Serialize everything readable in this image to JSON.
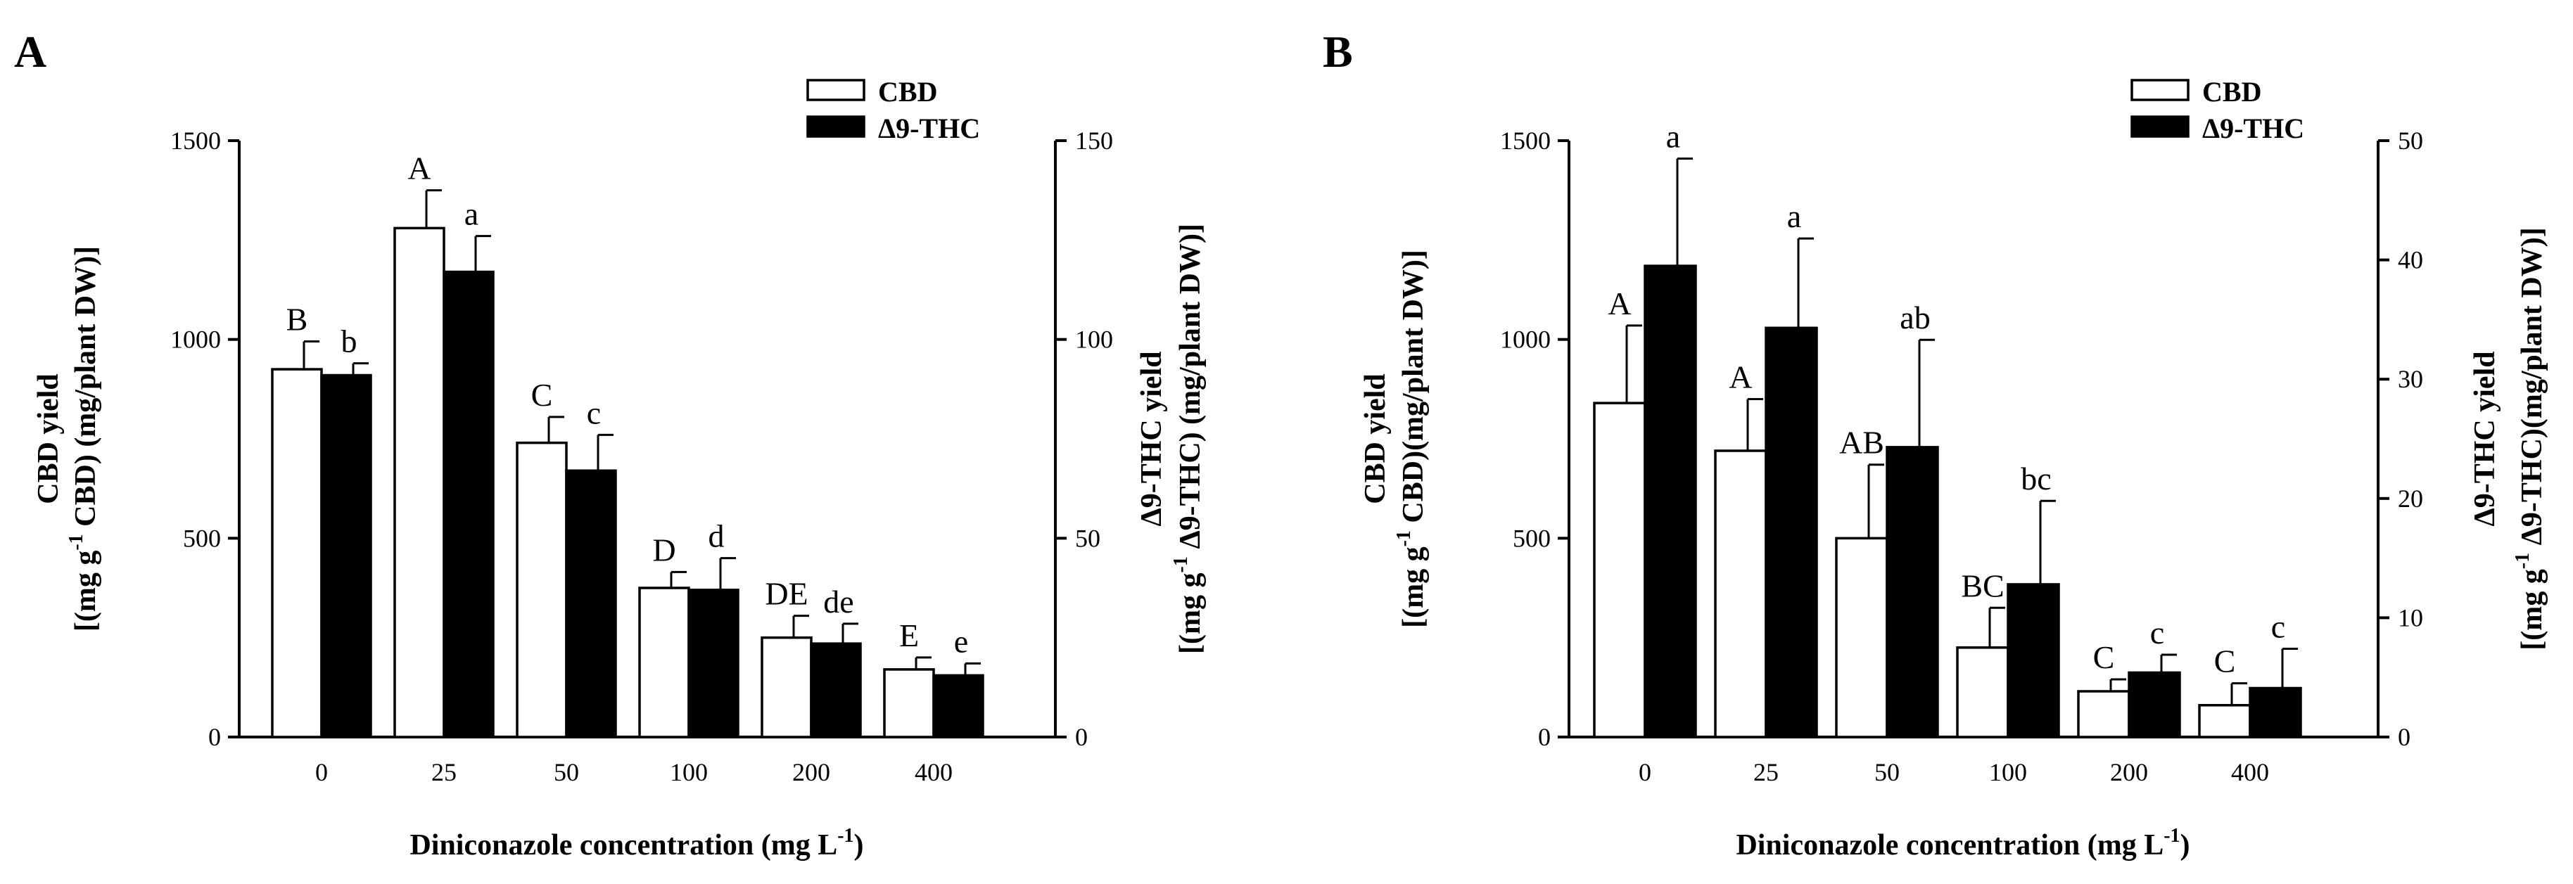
{
  "chart_data": [
    {
      "panel_label": "A",
      "type": "bar",
      "categories": [
        "0",
        "25",
        "50",
        "100",
        "200",
        "400"
      ],
      "xlabel": "Diniconazole concentration (mg L",
      "xlabel_sup": "-1",
      "xlabel_end": ")",
      "ylabel_left": {
        "line1": "CBD yield",
        "line2_pre": "[(mg g",
        "line2_sup": "-1",
        "line2_post": " CBD) (mg/plant DW)]"
      },
      "ylabel_right": {
        "line1": "Δ9-THC yield",
        "line2_pre": "[(mg g",
        "line2_sup": "-1",
        "line2_post": " Δ9-THC) (mg/plant DW)]"
      },
      "ylim_left": [
        0,
        1500
      ],
      "yticks_left": [
        "0",
        "500",
        "1000",
        "1500"
      ],
      "ylim_right": [
        0,
        150
      ],
      "yticks_right": [
        "0",
        "50",
        "100",
        "150"
      ],
      "legend": [
        "CBD",
        "Δ9-THC"
      ],
      "series": [
        {
          "name": "CBD",
          "axis": "left",
          "values": [
            925,
            1280,
            740,
            375,
            250,
            170
          ],
          "errors": [
            70,
            95,
            65,
            40,
            55,
            30
          ],
          "letters": [
            "B",
            "A",
            "C",
            "D",
            "DE",
            "E"
          ]
        },
        {
          "name": "Δ9-THC",
          "axis": "right",
          "values": [
            91,
            117,
            67,
            37,
            23.5,
            15.5
          ],
          "errors": [
            3,
            9,
            9,
            8,
            5,
            3
          ],
          "letters": [
            "b",
            "a",
            "c",
            "d",
            "de",
            "e"
          ]
        }
      ]
    },
    {
      "panel_label": "B",
      "type": "bar",
      "categories": [
        "0",
        "25",
        "50",
        "100",
        "200",
        "400"
      ],
      "xlabel": "Diniconazole concentration (mg L",
      "xlabel_sup": "-1",
      "xlabel_end": ")",
      "ylabel_left": {
        "line1": "CBD yield",
        "line2_pre": "[(mg g",
        "line2_sup": "-1",
        "line2_post": " CBD)(mg/plant DW)]"
      },
      "ylabel_right": {
        "line1": "Δ9-THC yield",
        "line2_pre": "[(mg g",
        "line2_sup": "-1",
        "line2_post": " Δ9-THC)(mg/plant DW)]"
      },
      "ylim_left": [
        0,
        1500
      ],
      "yticks_left": [
        "0",
        "500",
        "1000",
        "1500"
      ],
      "ylim_right": [
        0,
        50
      ],
      "yticks_right": [
        "0",
        "10",
        "20",
        "30",
        "40",
        "50"
      ],
      "legend": [
        "CBD",
        "Δ9-THC"
      ],
      "series": [
        {
          "name": "CBD",
          "axis": "left",
          "values": [
            840,
            720,
            500,
            225,
            115,
            80
          ],
          "errors": [
            195,
            130,
            185,
            100,
            30,
            55
          ],
          "letters": [
            "A",
            "A",
            "AB",
            "BC",
            "C",
            "C"
          ]
        },
        {
          "name": "Δ9-THC",
          "axis": "right",
          "values": [
            39.5,
            34.3,
            24.3,
            12.8,
            5.4,
            4.1
          ],
          "errors": [
            9,
            7.5,
            9,
            7,
            1.5,
            3.3
          ],
          "letters": [
            "a",
            "a",
            "ab",
            "bc",
            "c",
            "c"
          ]
        }
      ]
    }
  ]
}
